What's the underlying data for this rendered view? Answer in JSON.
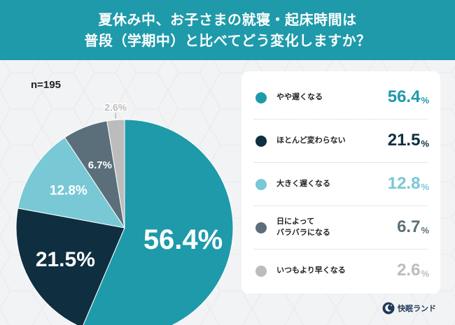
{
  "title": {
    "line1": "夏休み中、お子さまの就寝・起床時間は",
    "line2": "普段（学期中）と比べてどう変化しますか？"
  },
  "sample_size": "n=195",
  "chart_data": {
    "type": "pie",
    "title": "夏休み中、お子さまの就寝・起床時間は普段（学期中）と比べてどう変化しますか？",
    "categories": [
      "やや遅くなる",
      "ほとんど変わらない",
      "大きく遅くなる",
      "日によってバラバラになる",
      "いつもより早くなる"
    ],
    "values": [
      56.4,
      21.5,
      12.8,
      6.7,
      2.6
    ],
    "colors": [
      "#1e9aaa",
      "#0f2f40",
      "#78c8d6",
      "#5a6f7a",
      "#bcbcbc"
    ],
    "slice_labels": [
      "56.4%",
      "21.5%",
      "12.8%",
      "6.7%",
      "2.6%"
    ],
    "legend_position": "right"
  },
  "legend": {
    "items": [
      {
        "label": "やや遅くなる",
        "number": "56.4",
        "unit": "%",
        "color": "#1e9aaa",
        "value_color": "#1e9aaa"
      },
      {
        "label": "ほとんど変わらない",
        "number": "21.5",
        "unit": "%",
        "color": "#0f2f40",
        "value_color": "#0f2f40"
      },
      {
        "label": "大きく遅くなる",
        "number": "12.8",
        "unit": "%",
        "color": "#78c8d6",
        "value_color": "#78c8d6"
      },
      {
        "label": "日によって\nバラバラになる",
        "number": "6.7",
        "unit": "%",
        "color": "#5a6f7a",
        "value_color": "#5a6f7a"
      },
      {
        "label": "いつもより早くなる",
        "number": "2.6",
        "unit": "%",
        "color": "#bcbcbc",
        "value_color": "#bcbcbc"
      }
    ]
  },
  "logo": {
    "text": "快眠ランド",
    "icon": "sleep-moon-icon"
  }
}
